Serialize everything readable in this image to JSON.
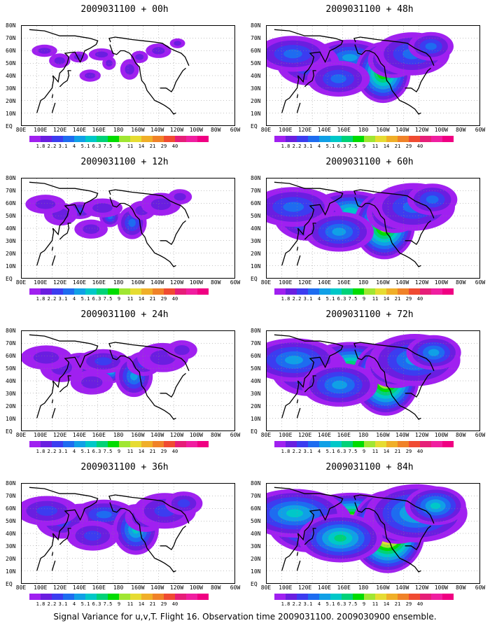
{
  "panels": [
    {
      "title": "2009031100 + 00h",
      "level": 0.0
    },
    {
      "title": "2009031100 + 48h",
      "level": 0.62
    },
    {
      "title": "2009031100 + 12h",
      "level": 0.18
    },
    {
      "title": "2009031100 + 60h",
      "level": 0.72
    },
    {
      "title": "2009031100 + 24h",
      "level": 0.32
    },
    {
      "title": "2009031100 + 72h",
      "level": 0.82
    },
    {
      "title": "2009031100 + 36h",
      "level": 0.46
    },
    {
      "title": "2009031100 + 84h",
      "level": 0.95
    }
  ],
  "lat_labels": [
    "80N",
    "70N",
    "60N",
    "50N",
    "40N",
    "30N",
    "20N",
    "10N",
    "EQ"
  ],
  "lon_labels": [
    "80E",
    "100E",
    "120E",
    "140E",
    "160E",
    "180",
    "160W",
    "140W",
    "120W",
    "100W",
    "80W",
    "60W"
  ],
  "colorbar": {
    "colors": [
      "#a020f0",
      "#6a1ee0",
      "#3c3cf0",
      "#1e6cf0",
      "#10a0e6",
      "#00c8c8",
      "#00d278",
      "#00dc00",
      "#a0e632",
      "#e6dc32",
      "#f0af28",
      "#f08228",
      "#f04b32",
      "#e61e78",
      "#f01ea0",
      "#f00082"
    ],
    "ticks": [
      "1.8",
      "2.2",
      "3.1",
      "4",
      "5.1",
      "6.3",
      "7.5",
      "9",
      "11",
      "14",
      "21",
      "29",
      "40"
    ]
  },
  "footer": "Signal Variance for u,v,T. Flight 16. Observation time 2009031100. 2009030900 ensemble."
}
